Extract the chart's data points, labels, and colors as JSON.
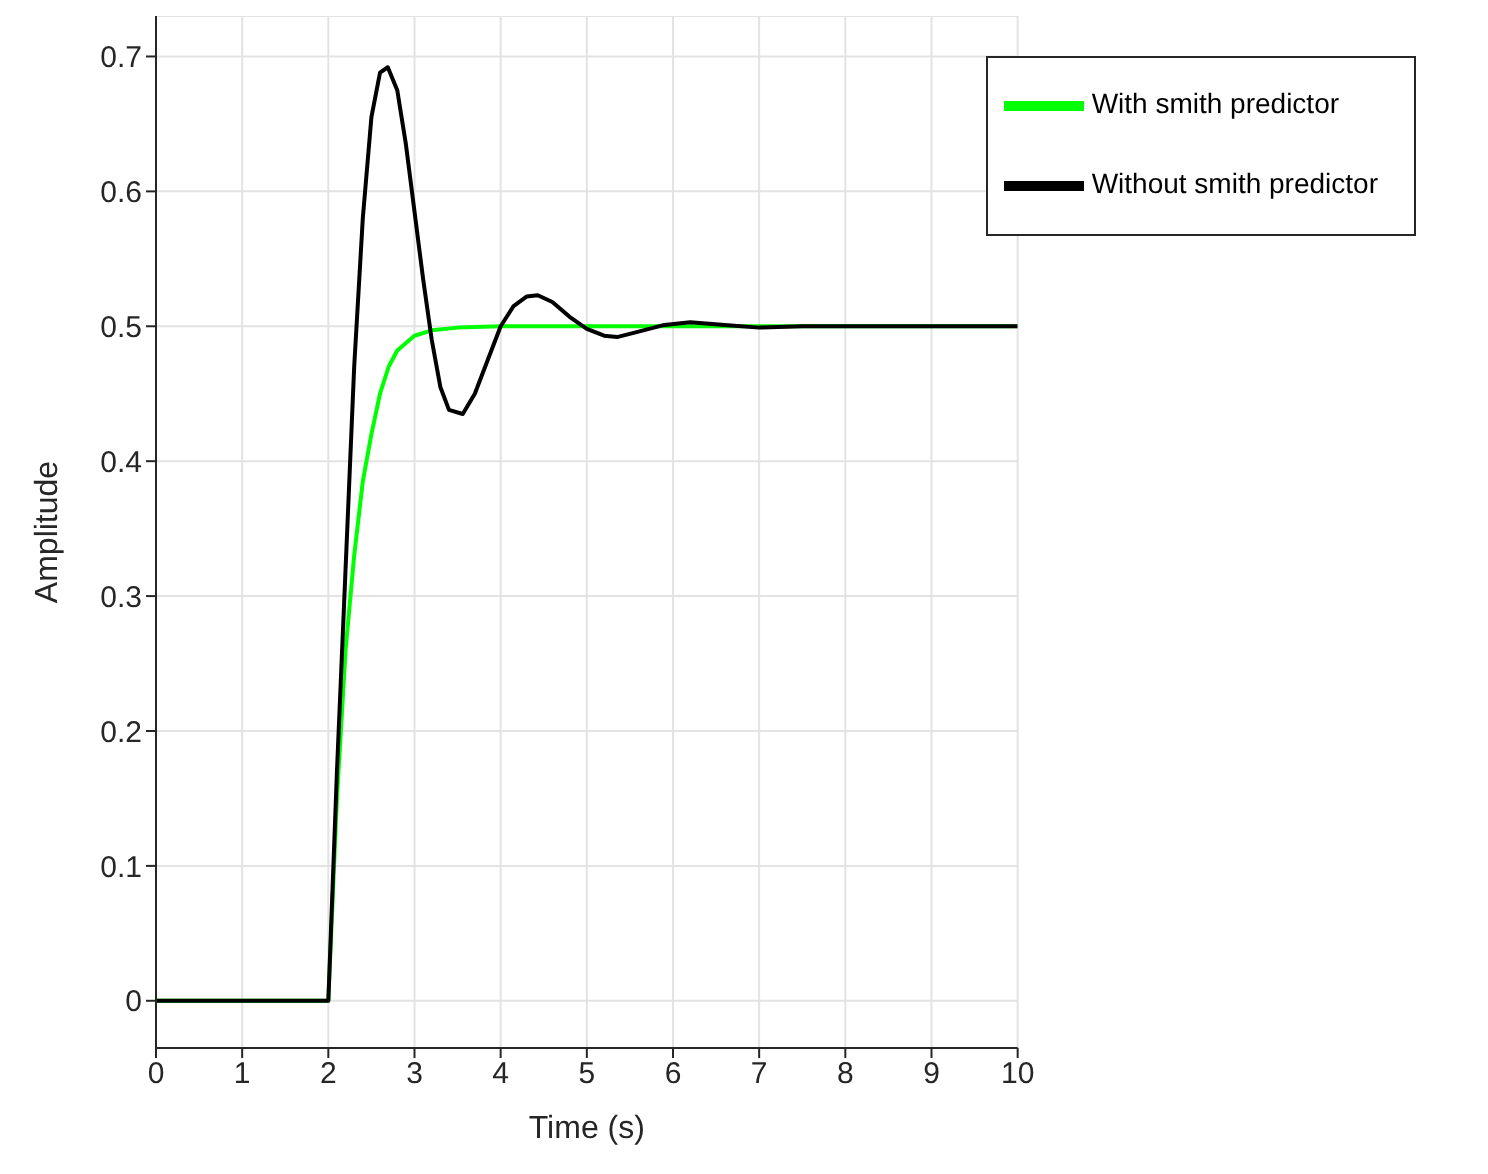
{
  "chart_data": {
    "type": "line",
    "xlabel": "Time (s)",
    "ylabel": "Amplitude",
    "xlim": [
      0,
      10
    ],
    "xticks": [
      0,
      1,
      2,
      3,
      4,
      5,
      6,
      7,
      8,
      9,
      10
    ],
    "ylim": [
      -0.035,
      0.73
    ],
    "yticks": [
      0,
      0.1,
      0.2,
      0.3,
      0.4,
      0.5,
      0.6,
      0.7
    ],
    "grid": true,
    "legend": "top right",
    "line_style": "solid",
    "marker": "none",
    "series": [
      {
        "name": "With smith predictor",
        "color": "#00ff00",
        "x": [
          0,
          2,
          2.1,
          2.2,
          2.3,
          2.4,
          2.5,
          2.6,
          2.7,
          2.8,
          3.0,
          3.2,
          3.5,
          4,
          10
        ],
        "values": [
          0,
          0,
          0.15,
          0.26,
          0.33,
          0.385,
          0.42,
          0.45,
          0.47,
          0.482,
          0.493,
          0.497,
          0.499,
          0.5,
          0.5
        ]
      },
      {
        "name": "Without smith predictor",
        "color": "#000000",
        "x": [
          0,
          2,
          2.1,
          2.2,
          2.3,
          2.4,
          2.5,
          2.6,
          2.69,
          2.8,
          2.9,
          3.0,
          3.1,
          3.2,
          3.3,
          3.4,
          3.56,
          3.7,
          3.85,
          4.0,
          4.15,
          4.3,
          4.43,
          4.6,
          4.8,
          5.0,
          5.2,
          5.35,
          5.6,
          5.9,
          6.2,
          6.6,
          7,
          7.5,
          8,
          10
        ],
        "values": [
          0,
          0,
          0.17,
          0.32,
          0.47,
          0.58,
          0.655,
          0.688,
          0.692,
          0.675,
          0.635,
          0.585,
          0.535,
          0.49,
          0.455,
          0.438,
          0.435,
          0.45,
          0.475,
          0.5,
          0.515,
          0.522,
          0.523,
          0.518,
          0.507,
          0.498,
          0.493,
          0.492,
          0.496,
          0.501,
          0.503,
          0.501,
          0.499,
          0.5,
          0.5,
          0.5
        ]
      }
    ]
  }
}
